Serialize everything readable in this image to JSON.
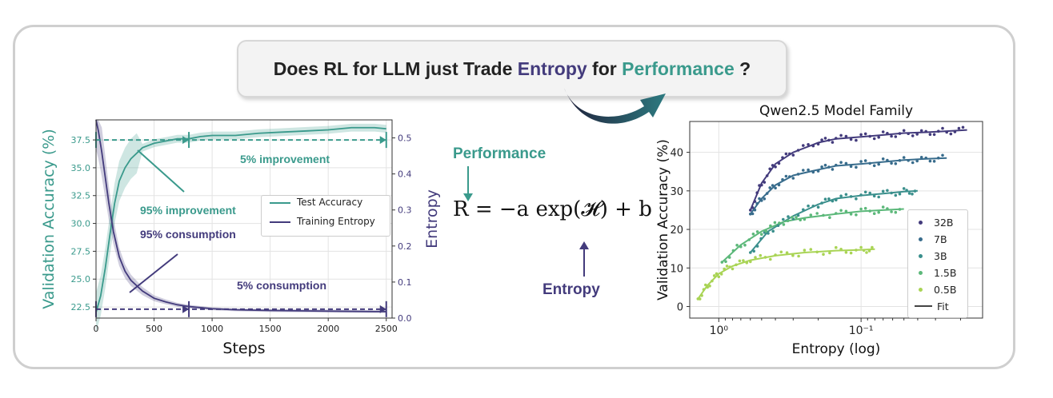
{
  "banner": {
    "part1": "Does RL for LLM just Trade ",
    "word_entropy": "Entropy",
    "part2": " for ",
    "word_performance": "Performance",
    "part3": " ?"
  },
  "colors": {
    "teal": "#3a9a8c",
    "purple": "#433b7c",
    "frame": "#cfcfcf"
  },
  "formula": {
    "text": "R = −a exp(𝓗) + b",
    "performance_label": "Performance",
    "entropy_label": "Entropy"
  },
  "chart_data": [
    {
      "type": "line",
      "xlabel": "Steps",
      "ylabel": "Validation Accuracy (%)",
      "ylabel_right": "Entropy",
      "xlim": [
        0,
        2550
      ],
      "ylim": [
        21.5,
        39.3
      ],
      "ylim_right": [
        0.0,
        0.55
      ],
      "xticks": [
        "0",
        "500",
        "1000",
        "1500",
        "2000",
        "2500"
      ],
      "yticks": [
        "22.5",
        "25.0",
        "27.5",
        "30.0",
        "32.5",
        "35.0",
        "37.5"
      ],
      "yticks_right": [
        "0.0",
        "0.1",
        "0.2",
        "0.3",
        "0.4",
        "0.5"
      ],
      "legend": [
        "Test Accuracy",
        "Training Entropy"
      ],
      "legend_position": "center-right",
      "series": [
        {
          "name": "Test Accuracy",
          "axis": "left",
          "x": [
            0,
            40,
            80,
            120,
            160,
            200,
            250,
            300,
            350,
            400,
            500,
            600,
            700,
            800,
            900,
            1000,
            1200,
            1400,
            1600,
            1800,
            2000,
            2200,
            2400,
            2500
          ],
          "values": [
            22.0,
            23.5,
            26.0,
            29.0,
            31.8,
            33.8,
            35.0,
            35.8,
            36.3,
            36.8,
            37.2,
            37.4,
            37.6,
            37.6,
            37.8,
            37.9,
            37.9,
            38.1,
            38.2,
            38.3,
            38.4,
            38.6,
            38.6,
            38.5
          ]
        },
        {
          "name": "Training Entropy",
          "axis": "right",
          "x": [
            0,
            20,
            50,
            80,
            110,
            150,
            200,
            250,
            300,
            400,
            500,
            600,
            700,
            800,
            900,
            1000,
            1200,
            1500,
            1800,
            2100,
            2400,
            2500
          ],
          "values": [
            0.55,
            0.52,
            0.46,
            0.39,
            0.32,
            0.24,
            0.17,
            0.13,
            0.105,
            0.075,
            0.055,
            0.045,
            0.037,
            0.032,
            0.029,
            0.026,
            0.023,
            0.021,
            0.02,
            0.019,
            0.018,
            0.018
          ]
        }
      ],
      "annotations": [
        "5% improvement",
        "95% improvement",
        "95% consumption",
        "5% consumption"
      ]
    },
    {
      "type": "scatter",
      "title": "Qwen2.5 Model Family",
      "xlabel": "Entropy (log)",
      "ylabel": "Validation Accuracy (%)",
      "x_scale": "log",
      "x_direction": "decreasing to the right",
      "xticks": [
        "10⁰",
        "10⁻¹"
      ],
      "yticks": [
        "0",
        "10",
        "20",
        "30",
        "40"
      ],
      "ylim": [
        -3,
        48
      ],
      "legend": [
        "32B",
        "7B",
        "3B",
        "1.5B",
        "0.5B",
        "Fit"
      ],
      "legend_position": "bottom-right",
      "series": [
        {
          "name": "32B",
          "color": "#433b7c",
          "x": [
            0.6,
            0.5,
            0.4,
            0.3,
            0.2,
            0.15,
            0.1,
            0.07,
            0.05,
            0.035,
            0.025,
            0.018
          ],
          "values": [
            25,
            32,
            37,
            40,
            42.5,
            43.5,
            44,
            44.5,
            45,
            45.2,
            45.5,
            45.8
          ]
        },
        {
          "name": "7B",
          "color": "#386c8c",
          "x": [
            0.6,
            0.5,
            0.4,
            0.3,
            0.2,
            0.15,
            0.1,
            0.07,
            0.05,
            0.035,
            0.025
          ],
          "values": [
            24,
            28,
            31.5,
            34,
            35.5,
            36.5,
            37,
            37.5,
            38,
            38.3,
            38.5
          ]
        },
        {
          "name": "3B",
          "color": "#3a8f8c",
          "x": [
            0.6,
            0.45,
            0.3,
            0.2,
            0.15,
            0.1,
            0.07,
            0.05,
            0.04
          ],
          "values": [
            14,
            19.5,
            23.5,
            26.5,
            28,
            28.8,
            29.3,
            29.8,
            30
          ]
        },
        {
          "name": "1.5B",
          "color": "#5cb87a",
          "x": [
            0.95,
            0.7,
            0.5,
            0.35,
            0.25,
            0.15,
            0.1,
            0.07,
            0.05
          ],
          "values": [
            11.5,
            16,
            19.5,
            22,
            23,
            24,
            24.7,
            25,
            25.3
          ]
        },
        {
          "name": "0.5B",
          "color": "#a9d455",
          "x": [
            1.4,
            1.2,
            1.0,
            0.8,
            0.6,
            0.4,
            0.25,
            0.15,
            0.1,
            0.08
          ],
          "values": [
            2,
            5.5,
            8.5,
            10.5,
            12,
            13.2,
            14,
            14.5,
            14.7,
            14.9
          ]
        }
      ]
    }
  ]
}
